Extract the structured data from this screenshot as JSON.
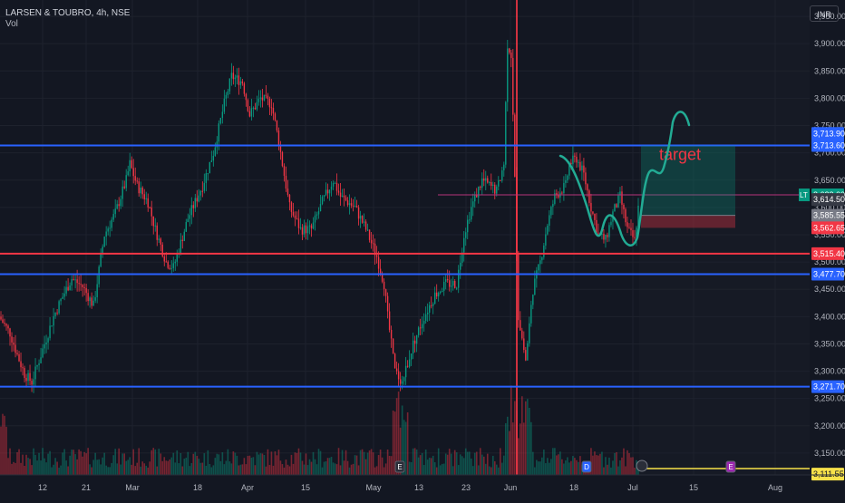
{
  "header": {
    "title": "LARSEN & TOUBRO, 4h, NSE",
    "volume_label": "Vol"
  },
  "currency_button": "INR",
  "chart_data": {
    "type": "candlestick",
    "symbol": "LARSEN & TOUBRO",
    "interval": "4h",
    "exchange": "NSE",
    "y_axis_ticks": [
      3950,
      3900,
      3850,
      3800,
      3750,
      3700,
      3650,
      3600,
      3550,
      3500,
      3450,
      3400,
      3350,
      3300,
      3250,
      3200,
      3150
    ],
    "y_tick_labels": [
      "3,950.00",
      "3,900.00",
      "3,850.00",
      "3,800.00",
      "3,750.00",
      "3,700.00",
      "3,650.00",
      "3,600.00",
      "3,550.00",
      "3,500.00",
      "3,450.00",
      "3,400.00",
      "3,350.00",
      "3,300.00",
      "3,250.00",
      "3,200.00",
      "3,150.00"
    ],
    "ylim": [
      3110,
      3980
    ],
    "x_axis_labels": [
      "12",
      "21",
      "Mar",
      "18",
      "Apr",
      "15",
      "May",
      "13",
      "23",
      "Jun",
      "18",
      "Jul",
      "15",
      "Aug"
    ],
    "price_path": [
      [
        0,
        3400
      ],
      [
        6,
        3370
      ],
      [
        10,
        3330
      ],
      [
        14,
        3295
      ],
      [
        18,
        3280
      ],
      [
        22,
        3320
      ],
      [
        26,
        3360
      ],
      [
        30,
        3400
      ],
      [
        34,
        3430
      ],
      [
        40,
        3470
      ],
      [
        46,
        3455
      ],
      [
        52,
        3420
      ],
      [
        58,
        3550
      ],
      [
        64,
        3590
      ],
      [
        70,
        3650
      ],
      [
        72,
        3680
      ],
      [
        76,
        3640
      ],
      [
        82,
        3610
      ],
      [
        86,
        3560
      ],
      [
        92,
        3500
      ],
      [
        96,
        3490
      ],
      [
        104,
        3580
      ],
      [
        112,
        3640
      ],
      [
        118,
        3700
      ],
      [
        124,
        3790
      ],
      [
        128,
        3840
      ],
      [
        134,
        3830
      ],
      [
        138,
        3770
      ],
      [
        144,
        3800
      ],
      [
        150,
        3790
      ],
      [
        154,
        3720
      ],
      [
        160,
        3600
      ],
      [
        166,
        3560
      ],
      [
        172,
        3560
      ],
      [
        178,
        3610
      ],
      [
        184,
        3650
      ],
      [
        188,
        3620
      ],
      [
        196,
        3600
      ],
      [
        202,
        3560
      ],
      [
        208,
        3510
      ],
      [
        212,
        3460
      ],
      [
        214,
        3400
      ],
      [
        218,
        3300
      ],
      [
        222,
        3280
      ],
      [
        228,
        3350
      ],
      [
        234,
        3400
      ],
      [
        240,
        3440
      ],
      [
        246,
        3460
      ],
      [
        252,
        3460
      ],
      [
        256,
        3550
      ],
      [
        260,
        3600
      ],
      [
        266,
        3650
      ],
      [
        270,
        3640
      ],
      [
        274,
        3630
      ],
      [
        278,
        3680
      ],
      [
        280,
        3900
      ],
      [
        282,
        3880
      ],
      [
        284,
        3650
      ],
      [
        286,
        3400
      ],
      [
        290,
        3320
      ],
      [
        294,
        3450
      ],
      [
        298,
        3500
      ],
      [
        302,
        3570
      ],
      [
        306,
        3620
      ],
      [
        312,
        3640
      ],
      [
        314,
        3680
      ],
      [
        318,
        3690
      ],
      [
        322,
        3660
      ],
      [
        326,
        3600
      ],
      [
        330,
        3550
      ],
      [
        334,
        3540
      ],
      [
        338,
        3590
      ],
      [
        342,
        3620
      ],
      [
        346,
        3560
      ],
      [
        350,
        3540
      ],
      [
        352,
        3600
      ]
    ],
    "horizontal_levels": [
      {
        "price": 3713.6,
        "color": "#2962ff"
      },
      {
        "price": 3515.4,
        "color": "#f23645"
      },
      {
        "price": 3477.7,
        "color": "#2962ff"
      },
      {
        "price": 3271.7,
        "color": "#2962ff"
      }
    ],
    "price_labels": [
      {
        "text": "3,713.90",
        "price": 3713.9,
        "color": "#2962ff"
      },
      {
        "text": "3,713.60",
        "price": 3713.6,
        "color": "#2962ff"
      },
      {
        "text": "3,623.00",
        "price": 3623.0,
        "color": "#089981",
        "tag": "LT"
      },
      {
        "text": "3,614.50",
        "price": 3614.5,
        "color": "#363a45"
      },
      {
        "text": "3,585.55",
        "price": 3585.55,
        "color": "#787b86"
      },
      {
        "text": "3,562.65",
        "price": 3562.65,
        "color": "#f23645"
      },
      {
        "text": "3,515.40",
        "price": 3515.4,
        "color": "#f23645"
      },
      {
        "text": "3,477.70",
        "price": 3477.7,
        "color": "#2962ff"
      },
      {
        "text": "3,271.70",
        "price": 3271.7,
        "color": "#2962ff"
      },
      {
        "text": "3,111.55",
        "price": 3111.55,
        "color": "#f7e14a"
      }
    ],
    "position_box": {
      "target_top": 3713.6,
      "entry": 3585.55,
      "stop": 3562.65,
      "annotation": "target"
    },
    "current_price": 3623.0,
    "colors": {
      "up": "#089981",
      "down": "#f23645",
      "background": "#131722",
      "grid": "#1e222d",
      "crosshair": "#f23645",
      "projection": "#22ab94"
    },
    "event_markers": [
      "E",
      "D",
      "E"
    ]
  }
}
